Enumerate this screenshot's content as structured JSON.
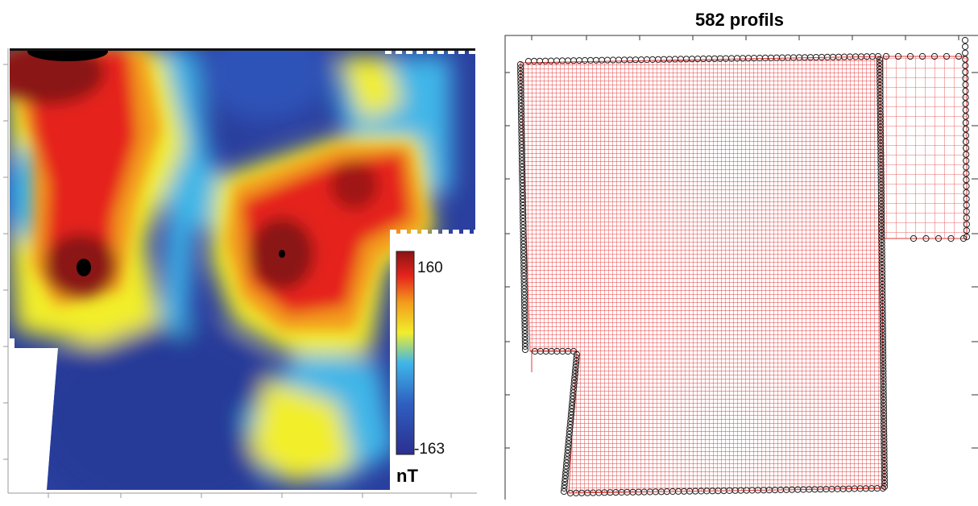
{
  "magnetic_map": {
    "colorbar": {
      "max_label": "160",
      "min_label": "-163",
      "unit": "nT",
      "colors": [
        "#2b2f8f",
        "#2f5fc0",
        "#3fb6e8",
        "#f2ee2c",
        "#f39a1c",
        "#e5231c",
        "#8a1414"
      ]
    }
  },
  "survey_map": {
    "title": "582 profils",
    "line_color": "#e23a3a",
    "marker_color": "#222222"
  }
}
